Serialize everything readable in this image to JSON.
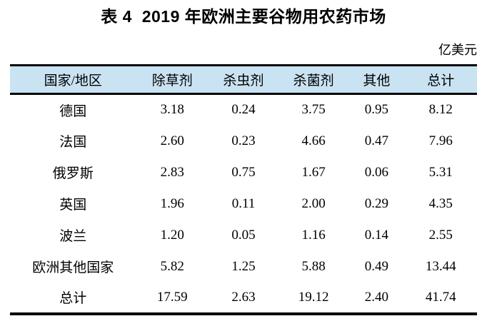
{
  "page": {
    "title": "表 4  2019 年欧洲主要谷物用农药市场",
    "unit_label": "亿美元"
  },
  "table": {
    "columns": [
      "国家/地区",
      "除草剂",
      "杀虫剂",
      "杀菌剂",
      "其他",
      "总计"
    ],
    "rows": [
      {
        "name": "德国",
        "values": [
          "3.18",
          "0.24",
          "3.75",
          "0.95",
          "8.12"
        ]
      },
      {
        "name": "法国",
        "values": [
          "2.60",
          "0.23",
          "4.66",
          "0.47",
          "7.96"
        ]
      },
      {
        "name": "俄罗斯",
        "values": [
          "2.83",
          "0.75",
          "1.67",
          "0.06",
          "5.31"
        ]
      },
      {
        "name": "英国",
        "values": [
          "1.96",
          "0.11",
          "2.00",
          "0.29",
          "4.35"
        ]
      },
      {
        "name": "波兰",
        "values": [
          "1.20",
          "0.05",
          "1.16",
          "0.14",
          "2.55"
        ]
      },
      {
        "name": "欧洲其他国家",
        "values": [
          "5.82",
          "1.25",
          "5.88",
          "0.49",
          "13.44"
        ]
      },
      {
        "name": "总计",
        "values": [
          "17.59",
          "2.63",
          "19.12",
          "2.40",
          "41.74"
        ]
      }
    ]
  },
  "colors": {
    "header_bg": "#c9e3f3",
    "rule": "#000000",
    "text": "#000000"
  }
}
